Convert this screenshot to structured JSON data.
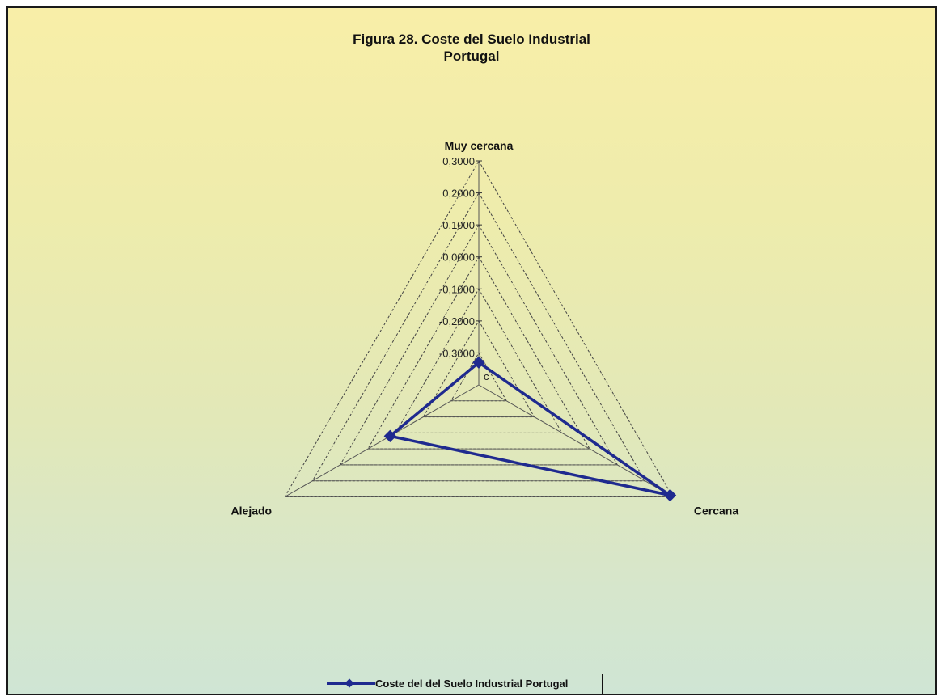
{
  "chart_data": {
    "type": "radar",
    "title": "Figura 28. Coste del Suelo Industrial",
    "subtitle": "Portugal",
    "axes": [
      "Muy cercana",
      "Cercana",
      "Alejado"
    ],
    "tick_labels": [
      "0,3000",
      "0,2000",
      "0,1000",
      "0,0000",
      "-0,1000",
      "-0,2000",
      "-0,3000"
    ],
    "rmin": -0.4,
    "rmax": 0.3,
    "grid": "dashed",
    "center_label": "c",
    "legend_position": "bottom",
    "series": [
      {
        "name": "Coste del del Suelo Industrial Portugal",
        "values": [
          -0.33,
          0.29,
          -0.08
        ],
        "color": "#1f2a8f"
      }
    ]
  },
  "legend": {
    "label": "Coste del del Suelo Industrial Portugal"
  }
}
